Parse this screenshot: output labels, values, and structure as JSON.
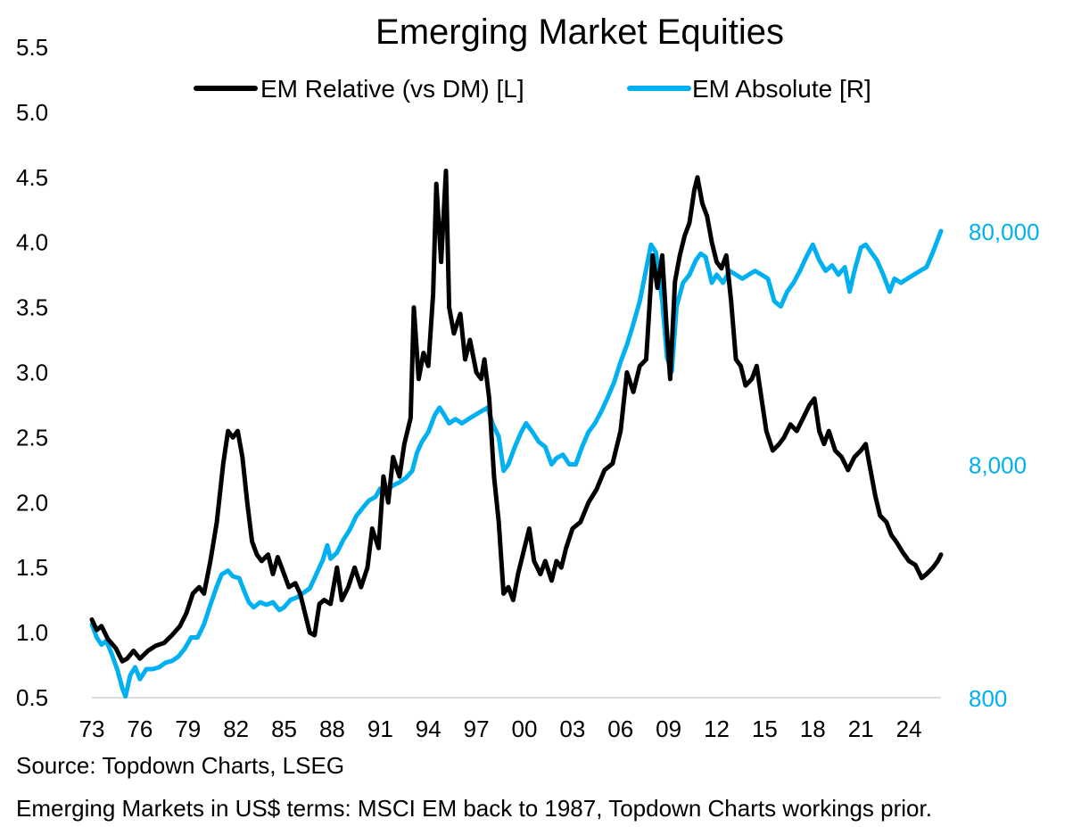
{
  "chart_data": {
    "type": "line",
    "title": "Emerging Market Equities",
    "left_axis": {
      "ticks": [
        "5.5",
        "5.0",
        "4.5",
        "4.0",
        "3.5",
        "3.0",
        "2.5",
        "2.0",
        "1.5",
        "1.0",
        "0.5"
      ],
      "range": [
        0.5,
        5.5
      ]
    },
    "right_axis": {
      "scale": "log",
      "ticks": [
        "80,000",
        "8,000",
        "800"
      ],
      "range": [
        800,
        80000
      ],
      "color": "#00B0F0"
    },
    "x_axis": {
      "ticks": [
        "73",
        "76",
        "79",
        "82",
        "85",
        "88",
        "91",
        "94",
        "97",
        "00",
        "03",
        "06",
        "09",
        "12",
        "15",
        "18",
        "21",
        "24"
      ],
      "range": [
        1973,
        2026
      ]
    },
    "legend_position": "top",
    "grid": false,
    "series": [
      {
        "name": "EM Relative (vs DM) [L]",
        "axis": "left",
        "color": "#000000",
        "points": [
          [
            1973.0,
            1.1
          ],
          [
            1973.3,
            1.02
          ],
          [
            1973.6,
            1.05
          ],
          [
            1974.0,
            0.95
          ],
          [
            1974.5,
            0.88
          ],
          [
            1974.9,
            0.78
          ],
          [
            1975.2,
            0.8
          ],
          [
            1975.6,
            0.86
          ],
          [
            1976.0,
            0.8
          ],
          [
            1976.5,
            0.86
          ],
          [
            1977.0,
            0.9
          ],
          [
            1977.5,
            0.92
          ],
          [
            1978.0,
            0.98
          ],
          [
            1978.5,
            1.05
          ],
          [
            1978.9,
            1.15
          ],
          [
            1979.3,
            1.3
          ],
          [
            1979.7,
            1.35
          ],
          [
            1980.0,
            1.3
          ],
          [
            1980.4,
            1.55
          ],
          [
            1980.8,
            1.85
          ],
          [
            1981.2,
            2.3
          ],
          [
            1981.5,
            2.55
          ],
          [
            1981.8,
            2.5
          ],
          [
            1982.1,
            2.55
          ],
          [
            1982.4,
            2.35
          ],
          [
            1982.7,
            2.0
          ],
          [
            1983.0,
            1.7
          ],
          [
            1983.3,
            1.6
          ],
          [
            1983.6,
            1.55
          ],
          [
            1984.0,
            1.6
          ],
          [
            1984.3,
            1.45
          ],
          [
            1984.6,
            1.58
          ],
          [
            1985.0,
            1.45
          ],
          [
            1985.3,
            1.35
          ],
          [
            1985.7,
            1.38
          ],
          [
            1986.0,
            1.3
          ],
          [
            1986.3,
            1.15
          ],
          [
            1986.6,
            1.0
          ],
          [
            1986.9,
            0.98
          ],
          [
            1987.2,
            1.22
          ],
          [
            1987.5,
            1.25
          ],
          [
            1987.9,
            1.22
          ],
          [
            1988.3,
            1.5
          ],
          [
            1988.6,
            1.25
          ],
          [
            1989.0,
            1.35
          ],
          [
            1989.4,
            1.5
          ],
          [
            1989.8,
            1.35
          ],
          [
            1990.2,
            1.5
          ],
          [
            1990.5,
            1.8
          ],
          [
            1990.9,
            1.65
          ],
          [
            1991.2,
            2.2
          ],
          [
            1991.5,
            2.0
          ],
          [
            1991.8,
            2.35
          ],
          [
            1992.2,
            2.2
          ],
          [
            1992.5,
            2.45
          ],
          [
            1992.9,
            2.65
          ],
          [
            1993.1,
            3.5
          ],
          [
            1993.4,
            2.95
          ],
          [
            1993.7,
            3.15
          ],
          [
            1994.0,
            3.05
          ],
          [
            1994.3,
            3.6
          ],
          [
            1994.5,
            4.45
          ],
          [
            1994.8,
            3.85
          ],
          [
            1995.1,
            4.55
          ],
          [
            1995.3,
            3.5
          ],
          [
            1995.6,
            3.3
          ],
          [
            1996.0,
            3.45
          ],
          [
            1996.3,
            3.1
          ],
          [
            1996.6,
            3.25
          ],
          [
            1997.0,
            3.0
          ],
          [
            1997.3,
            2.95
          ],
          [
            1997.5,
            3.1
          ],
          [
            1997.8,
            2.8
          ],
          [
            1998.1,
            2.2
          ],
          [
            1998.4,
            1.85
          ],
          [
            1998.7,
            1.3
          ],
          [
            1999.0,
            1.35
          ],
          [
            1999.3,
            1.25
          ],
          [
            1999.6,
            1.45
          ],
          [
            2000.0,
            1.65
          ],
          [
            2000.3,
            1.8
          ],
          [
            2000.6,
            1.55
          ],
          [
            2001.0,
            1.45
          ],
          [
            2001.3,
            1.55
          ],
          [
            2001.7,
            1.4
          ],
          [
            2002.0,
            1.55
          ],
          [
            2002.3,
            1.5
          ],
          [
            2002.6,
            1.65
          ],
          [
            2003.0,
            1.8
          ],
          [
            2003.5,
            1.85
          ],
          [
            2004.0,
            2.0
          ],
          [
            2004.5,
            2.1
          ],
          [
            2005.0,
            2.25
          ],
          [
            2005.5,
            2.3
          ],
          [
            2006.0,
            2.55
          ],
          [
            2006.4,
            3.0
          ],
          [
            2006.8,
            2.85
          ],
          [
            2007.2,
            3.05
          ],
          [
            2007.6,
            3.1
          ],
          [
            2008.0,
            3.9
          ],
          [
            2008.3,
            3.65
          ],
          [
            2008.6,
            3.9
          ],
          [
            2008.9,
            3.3
          ],
          [
            2009.1,
            2.95
          ],
          [
            2009.4,
            3.7
          ],
          [
            2009.7,
            3.9
          ],
          [
            2010.0,
            4.05
          ],
          [
            2010.3,
            4.15
          ],
          [
            2010.6,
            4.4
          ],
          [
            2010.8,
            4.5
          ],
          [
            2011.1,
            4.3
          ],
          [
            2011.4,
            4.2
          ],
          [
            2011.7,
            4.0
          ],
          [
            2012.0,
            3.85
          ],
          [
            2012.3,
            3.8
          ],
          [
            2012.6,
            3.9
          ],
          [
            2012.9,
            3.55
          ],
          [
            2013.2,
            3.1
          ],
          [
            2013.5,
            3.05
          ],
          [
            2013.8,
            2.9
          ],
          [
            2014.2,
            2.95
          ],
          [
            2014.5,
            3.05
          ],
          [
            2014.8,
            2.8
          ],
          [
            2015.1,
            2.55
          ],
          [
            2015.5,
            2.4
          ],
          [
            2015.9,
            2.45
          ],
          [
            2016.2,
            2.5
          ],
          [
            2016.6,
            2.6
          ],
          [
            2017.0,
            2.55
          ],
          [
            2017.4,
            2.65
          ],
          [
            2017.8,
            2.75
          ],
          [
            2018.1,
            2.8
          ],
          [
            2018.4,
            2.55
          ],
          [
            2018.7,
            2.45
          ],
          [
            2019.0,
            2.55
          ],
          [
            2019.4,
            2.4
          ],
          [
            2019.8,
            2.35
          ],
          [
            2020.2,
            2.25
          ],
          [
            2020.6,
            2.35
          ],
          [
            2021.0,
            2.4
          ],
          [
            2021.3,
            2.45
          ],
          [
            2021.6,
            2.25
          ],
          [
            2021.9,
            2.05
          ],
          [
            2022.2,
            1.9
          ],
          [
            2022.6,
            1.85
          ],
          [
            2022.9,
            1.75
          ],
          [
            2023.2,
            1.7
          ],
          [
            2023.6,
            1.62
          ],
          [
            2024.0,
            1.55
          ],
          [
            2024.4,
            1.52
          ],
          [
            2024.8,
            1.42
          ],
          [
            2025.1,
            1.45
          ],
          [
            2025.5,
            1.5
          ],
          [
            2025.8,
            1.55
          ],
          [
            2026.0,
            1.6
          ]
        ]
      },
      {
        "name": "EM Absolute [R]",
        "axis": "right",
        "color": "#00B0F0",
        "points": [
          [
            1973.0,
            1650
          ],
          [
            1973.3,
            1450
          ],
          [
            1973.6,
            1350
          ],
          [
            1973.9,
            1400
          ],
          [
            1974.2,
            1250
          ],
          [
            1974.6,
            1050
          ],
          [
            1974.9,
            880
          ],
          [
            1975.1,
            810
          ],
          [
            1975.4,
            1000
          ],
          [
            1975.7,
            1080
          ],
          [
            1976.0,
            960
          ],
          [
            1976.4,
            1060
          ],
          [
            1976.8,
            1060
          ],
          [
            1977.2,
            1080
          ],
          [
            1977.6,
            1130
          ],
          [
            1978.0,
            1150
          ],
          [
            1978.4,
            1200
          ],
          [
            1978.8,
            1300
          ],
          [
            1979.2,
            1450
          ],
          [
            1979.6,
            1450
          ],
          [
            1980.0,
            1650
          ],
          [
            1980.4,
            2000
          ],
          [
            1980.8,
            2400
          ],
          [
            1981.1,
            2700
          ],
          [
            1981.5,
            2800
          ],
          [
            1981.8,
            2650
          ],
          [
            1982.2,
            2600
          ],
          [
            1982.5,
            2300
          ],
          [
            1982.8,
            2050
          ],
          [
            1983.1,
            1950
          ],
          [
            1983.5,
            2050
          ],
          [
            1983.9,
            2000
          ],
          [
            1984.3,
            2050
          ],
          [
            1984.7,
            1900
          ],
          [
            1985.0,
            1950
          ],
          [
            1985.4,
            2100
          ],
          [
            1985.8,
            2150
          ],
          [
            1986.2,
            2250
          ],
          [
            1986.6,
            2350
          ],
          [
            1987.0,
            2700
          ],
          [
            1987.4,
            3100
          ],
          [
            1987.7,
            3600
          ],
          [
            1987.9,
            3150
          ],
          [
            1988.3,
            3350
          ],
          [
            1988.7,
            3800
          ],
          [
            1989.1,
            4200
          ],
          [
            1989.5,
            4800
          ],
          [
            1989.9,
            5200
          ],
          [
            1990.3,
            5600
          ],
          [
            1990.7,
            5800
          ],
          [
            1991.0,
            6300
          ],
          [
            1991.4,
            6200
          ],
          [
            1991.8,
            6500
          ],
          [
            1992.2,
            6700
          ],
          [
            1992.6,
            7000
          ],
          [
            1993.0,
            7500
          ],
          [
            1993.3,
            9000
          ],
          [
            1993.6,
            10000
          ],
          [
            1994.0,
            11000
          ],
          [
            1994.4,
            13000
          ],
          [
            1994.7,
            14000
          ],
          [
            1995.0,
            13000
          ],
          [
            1995.3,
            12000
          ],
          [
            1995.7,
            12500
          ],
          [
            1996.1,
            12000
          ],
          [
            1996.5,
            12500
          ],
          [
            1996.9,
            13000
          ],
          [
            1997.3,
            13500
          ],
          [
            1997.7,
            14000
          ],
          [
            1998.0,
            12000
          ],
          [
            1998.4,
            10500
          ],
          [
            1998.7,
            7500
          ],
          [
            1999.0,
            8000
          ],
          [
            1999.4,
            9500
          ],
          [
            1999.8,
            11000
          ],
          [
            2000.1,
            12000
          ],
          [
            2000.5,
            11000
          ],
          [
            2000.9,
            10000
          ],
          [
            2001.3,
            9500
          ],
          [
            2001.7,
            8000
          ],
          [
            2002.0,
            8500
          ],
          [
            2002.4,
            8800
          ],
          [
            2002.8,
            8000
          ],
          [
            2003.2,
            8000
          ],
          [
            2003.6,
            9500
          ],
          [
            2004.0,
            11000
          ],
          [
            2004.4,
            12000
          ],
          [
            2004.8,
            13500
          ],
          [
            2005.2,
            15500
          ],
          [
            2005.6,
            18000
          ],
          [
            2006.0,
            22000
          ],
          [
            2006.4,
            26000
          ],
          [
            2006.8,
            32000
          ],
          [
            2007.2,
            40000
          ],
          [
            2007.6,
            55000
          ],
          [
            2007.9,
            70000
          ],
          [
            2008.2,
            65000
          ],
          [
            2008.6,
            40000
          ],
          [
            2008.9,
            23000
          ],
          [
            2009.2,
            20000
          ],
          [
            2009.5,
            38000
          ],
          [
            2009.9,
            48000
          ],
          [
            2010.3,
            52000
          ],
          [
            2010.7,
            60000
          ],
          [
            2011.0,
            64000
          ],
          [
            2011.3,
            62000
          ],
          [
            2011.7,
            48000
          ],
          [
            2012.0,
            52000
          ],
          [
            2012.4,
            48000
          ],
          [
            2012.8,
            54000
          ],
          [
            2013.2,
            52000
          ],
          [
            2013.6,
            50000
          ],
          [
            2014.0,
            52000
          ],
          [
            2014.4,
            54000
          ],
          [
            2014.8,
            52000
          ],
          [
            2015.2,
            50000
          ],
          [
            2015.6,
            40000
          ],
          [
            2016.0,
            38000
          ],
          [
            2016.4,
            44000
          ],
          [
            2016.8,
            48000
          ],
          [
            2017.2,
            54000
          ],
          [
            2017.6,
            62000
          ],
          [
            2018.0,
            70000
          ],
          [
            2018.4,
            60000
          ],
          [
            2018.8,
            54000
          ],
          [
            2019.2,
            57000
          ],
          [
            2019.6,
            52000
          ],
          [
            2020.0,
            56000
          ],
          [
            2020.3,
            44000
          ],
          [
            2020.6,
            54000
          ],
          [
            2021.0,
            68000
          ],
          [
            2021.3,
            70000
          ],
          [
            2021.7,
            64000
          ],
          [
            2022.0,
            60000
          ],
          [
            2022.4,
            52000
          ],
          [
            2022.8,
            44000
          ],
          [
            2023.1,
            50000
          ],
          [
            2023.5,
            48000
          ],
          [
            2023.9,
            50000
          ],
          [
            2024.3,
            52000
          ],
          [
            2024.7,
            54000
          ],
          [
            2025.1,
            56000
          ],
          [
            2025.5,
            65000
          ],
          [
            2026.0,
            80000
          ]
        ]
      }
    ]
  },
  "footer": {
    "source": "Source: Topdown Charts, LSEG",
    "note": "Emerging Markets in US$ terms: MSCI EM back to 1987, Topdown Charts workings prior."
  }
}
